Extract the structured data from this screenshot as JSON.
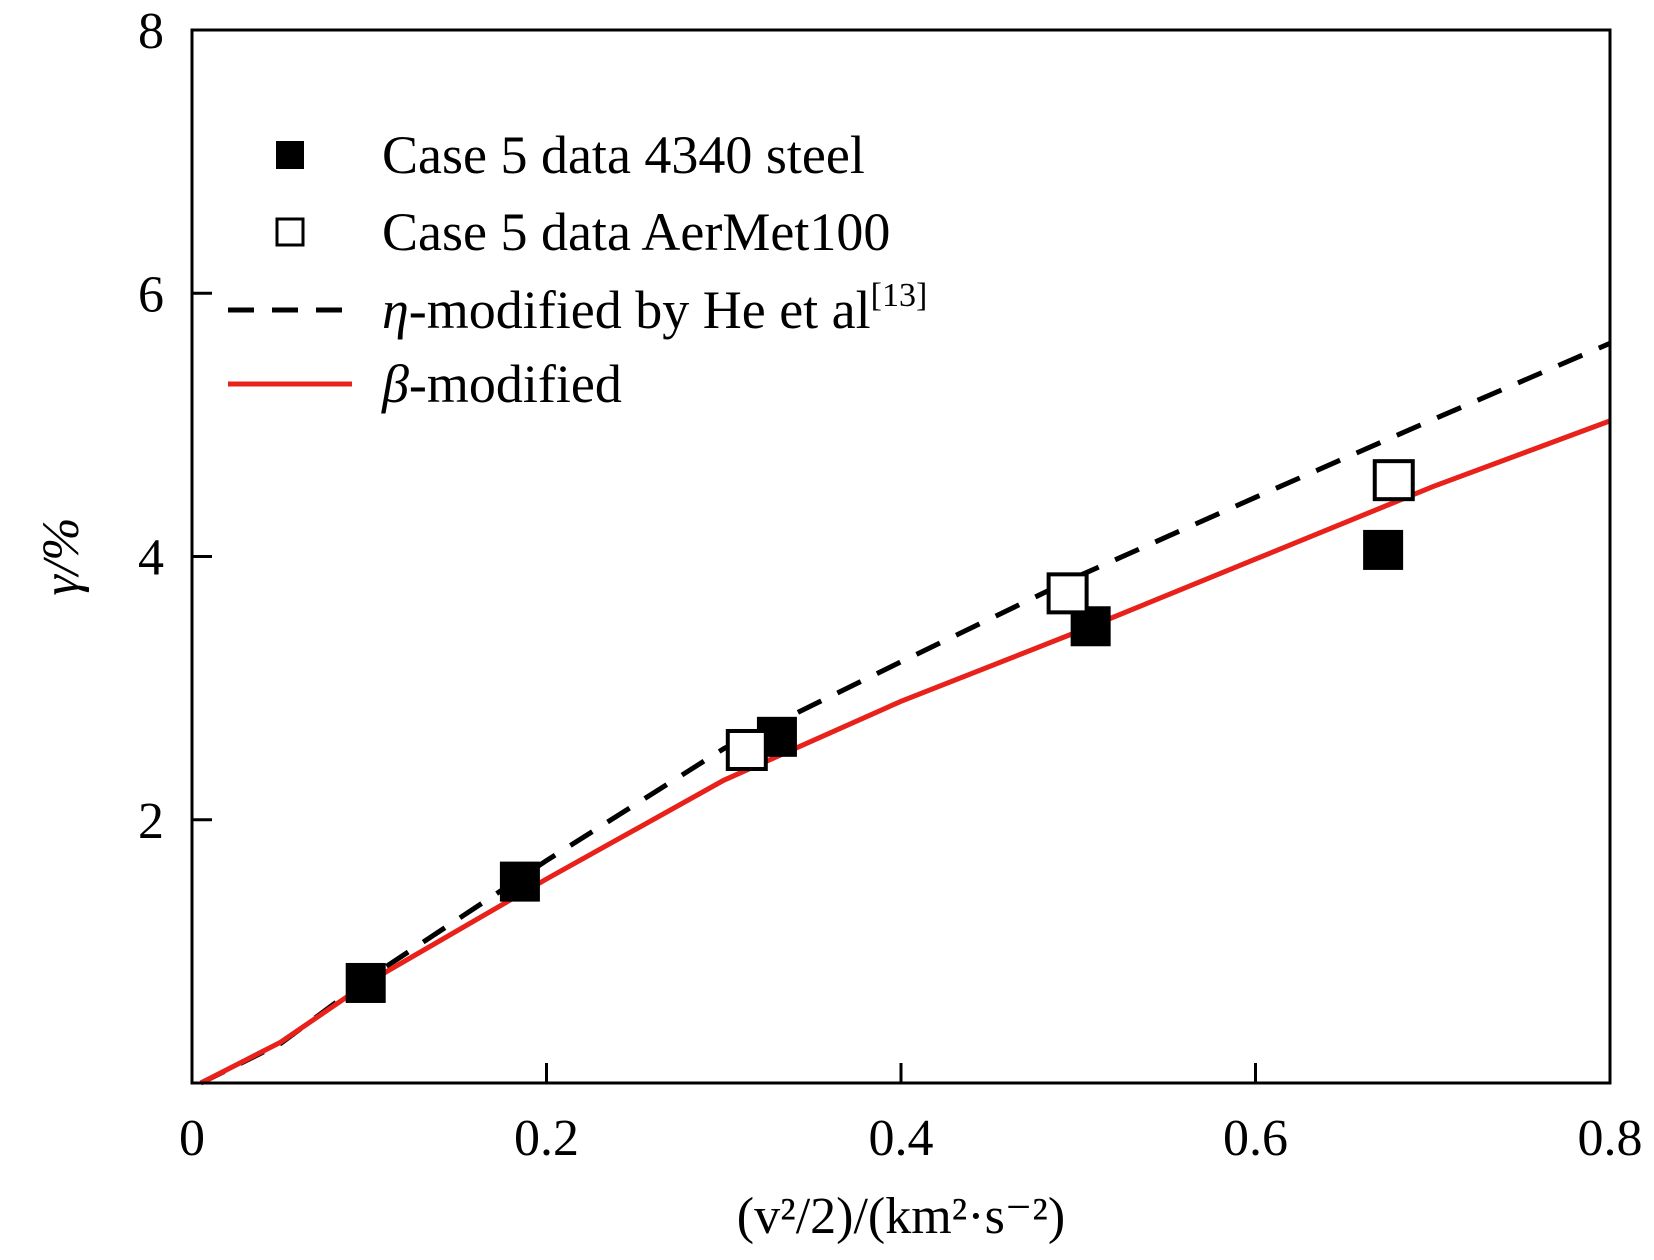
{
  "chart_data": {
    "type": "scatter",
    "xlabel": "(v²/2)/(km²·s⁻²)",
    "ylabel": "γ/%",
    "xlim": [
      0,
      0.8
    ],
    "ylim": [
      0,
      8
    ],
    "xticks": [
      "0",
      "0.2",
      "0.4",
      "0.6",
      "0.8"
    ],
    "yticks": [
      "2",
      "4",
      "6",
      "8"
    ],
    "grid": false,
    "legend_position": "top-left",
    "series": [
      {
        "name": "Case 5 data 4340 steel",
        "kind": "marker",
        "marker": "filled-square",
        "color": "#000000",
        "x": [
          0.098,
          0.185,
          0.33,
          0.507,
          0.672
        ],
        "y": [
          0.76,
          1.53,
          2.63,
          3.47,
          4.05
        ]
      },
      {
        "name": "Case 5 data AerMet100",
        "kind": "marker",
        "marker": "open-square",
        "color": "#000000",
        "x": [
          0.313,
          0.494,
          0.678
        ],
        "y": [
          2.53,
          3.72,
          4.58
        ]
      },
      {
        "name": "η-modified by He et al[13]",
        "kind": "line",
        "dash": "dashed",
        "color": "#000000",
        "x": [
          0.005,
          0.05,
          0.1,
          0.2,
          0.3,
          0.4,
          0.5,
          0.6,
          0.7,
          0.8
        ],
        "y": [
          0.0,
          0.3,
          0.8,
          1.69,
          2.54,
          3.2,
          3.85,
          4.45,
          5.04,
          5.62
        ]
      },
      {
        "name": "β-modified",
        "kind": "line",
        "dash": "solid",
        "color": "#e8211b",
        "x": [
          0.005,
          0.05,
          0.1,
          0.2,
          0.3,
          0.4,
          0.5,
          0.6,
          0.7,
          0.8
        ],
        "y": [
          0.0,
          0.31,
          0.77,
          1.55,
          2.3,
          2.9,
          3.43,
          3.98,
          4.53,
          5.03
        ]
      }
    ],
    "legend": [
      {
        "text": "Case 5 data 4340 steel",
        "prefix": "",
        "sup": ""
      },
      {
        "text": "Case 5 data AerMet100",
        "prefix": "",
        "sup": ""
      },
      {
        "text": "-modified by He et al",
        "prefix": "η",
        "sup": "[13]"
      },
      {
        "text": "-modified",
        "prefix": "β",
        "sup": ""
      }
    ]
  }
}
